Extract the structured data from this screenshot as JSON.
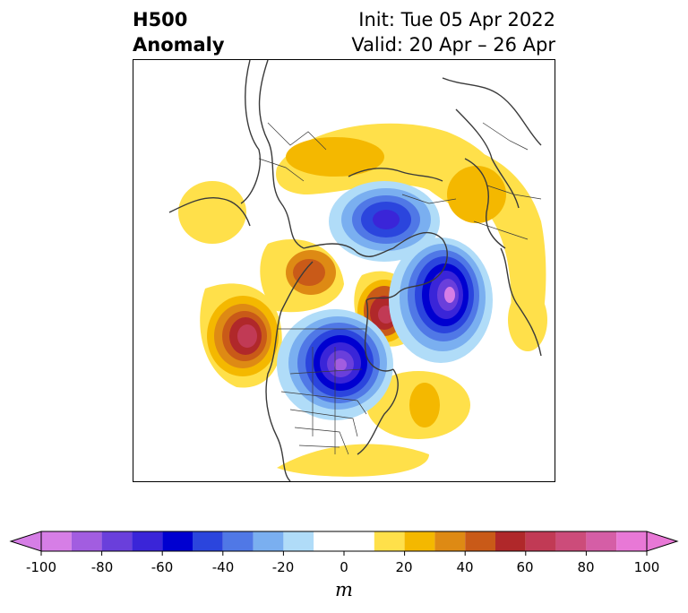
{
  "title": {
    "left_line1": "H500",
    "left_line2": "Anomaly",
    "right_line1": "Init: Tue 05 Apr 2022",
    "right_line2": "Valid: 20 Apr – 26 Apr"
  },
  "colorbar": {
    "unit": "m",
    "tick_labels": [
      "-100",
      "-80",
      "-60",
      "-40",
      "-20",
      "0",
      "20",
      "40",
      "60",
      "80",
      "100"
    ],
    "levels": [
      -100,
      -90,
      -80,
      -70,
      -60,
      -50,
      -40,
      -30,
      -20,
      -10,
      10,
      20,
      30,
      40,
      50,
      60,
      70,
      80,
      90,
      100
    ],
    "colors": [
      "#d67ee6",
      "#a25de0",
      "#6a3fdb",
      "#3a25d8",
      "#0000d0",
      "#2b45dd",
      "#5078e6",
      "#7aaff0",
      "#b0dcf8",
      "#ffffff",
      "#ffe04a",
      "#f4b800",
      "#de8a14",
      "#c95a18",
      "#b0282a",
      "#c13a55",
      "#cc4c7a",
      "#d55ea6",
      "#e878d6"
    ],
    "extend_low_color": "#d67ee6",
    "extend_high_color": "#e878d6"
  },
  "map": {
    "projection": "north polar stereographic",
    "field": "500 hPa geopotential height anomaly"
  }
}
